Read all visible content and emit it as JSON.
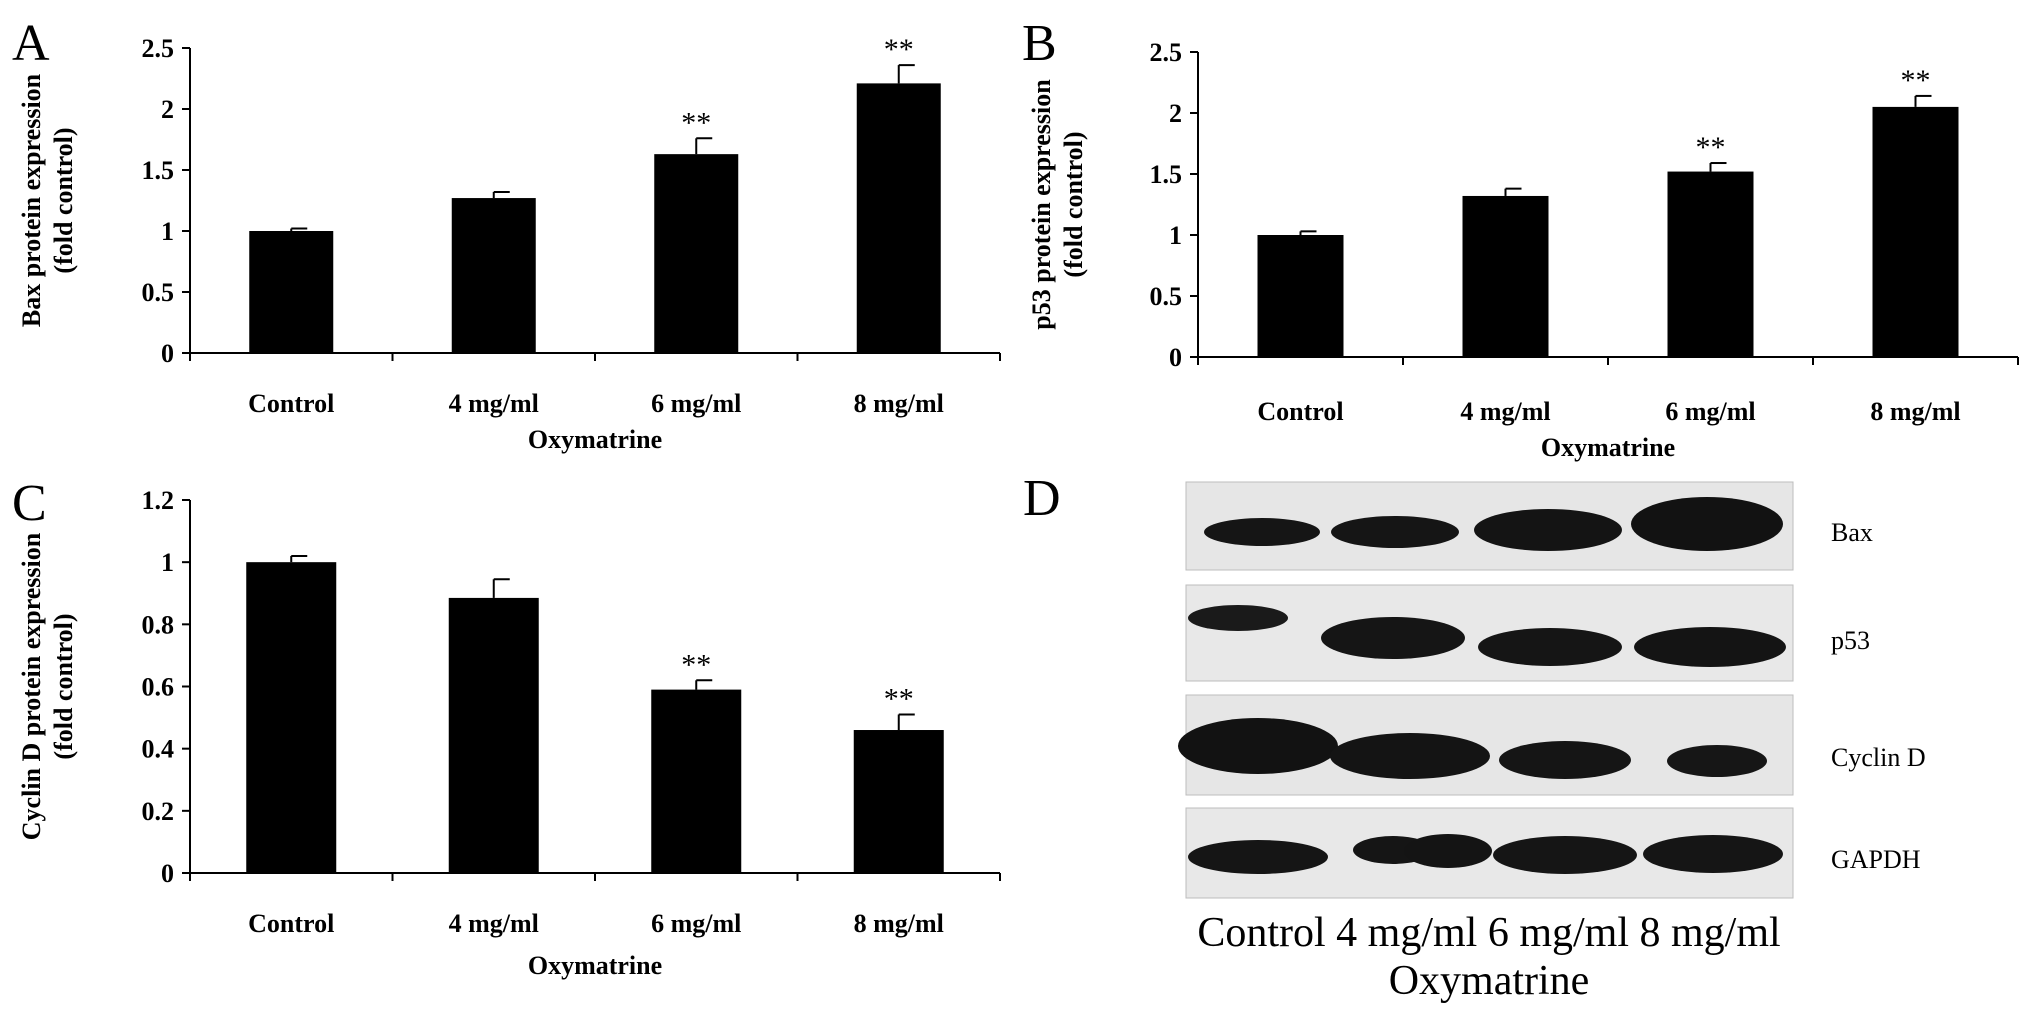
{
  "chart_data": [
    {
      "panel_label": "A",
      "type": "bar",
      "categories": [
        "Control",
        "4 mg/ml",
        "6 mg/ml",
        "8 mg/ml"
      ],
      "values": [
        1.0,
        1.27,
        1.63,
        2.21
      ],
      "errors": [
        0.02,
        0.05,
        0.13,
        0.15
      ],
      "significance": [
        "",
        "",
        "**",
        "**"
      ],
      "ylabel_line1": "Bax protein expression",
      "ylabel_line2": "(fold control)",
      "xlabel": "Oxymatrine",
      "ylim": [
        0,
        2.5
      ],
      "yticks": [
        0,
        0.5,
        1,
        1.5,
        2,
        2.5
      ],
      "ytick_labels": [
        "0",
        "0.5",
        "1",
        "1.5",
        "2",
        "2.5"
      ]
    },
    {
      "panel_label": "B",
      "type": "bar",
      "categories": [
        "Control",
        "4 mg/ml",
        "6 mg/ml",
        "8 mg/ml"
      ],
      "values": [
        1.0,
        1.32,
        1.52,
        2.05
      ],
      "errors": [
        0.03,
        0.06,
        0.07,
        0.09
      ],
      "significance": [
        "",
        "",
        "**",
        "**"
      ],
      "ylabel_line1": "p53 protein expression",
      "ylabel_line2": "(fold control)",
      "xlabel": "Oxymatrine",
      "ylim": [
        0,
        2.5
      ],
      "yticks": [
        0,
        0.5,
        1,
        1.5,
        2,
        2.5
      ],
      "ytick_labels": [
        "0",
        "0.5",
        "1",
        "1.5",
        "2",
        "2.5"
      ]
    },
    {
      "panel_label": "C",
      "type": "bar",
      "categories": [
        "Control",
        "4 mg/ml",
        "6 mg/ml",
        "8 mg/ml"
      ],
      "values": [
        1.0,
        0.885,
        0.59,
        0.46
      ],
      "errors": [
        0.02,
        0.06,
        0.03,
        0.05
      ],
      "significance": [
        "",
        "",
        "**",
        "**"
      ],
      "ylabel_line1": "Cyclin D protein expression",
      "ylabel_line2": "(fold control)",
      "xlabel": "Oxymatrine",
      "ylim": [
        0,
        1.2
      ],
      "yticks": [
        0,
        0.2,
        0.4,
        0.6,
        0.8,
        1.0,
        1.2
      ],
      "ytick_labels": [
        "0",
        "0.2",
        "0.4",
        "0.6",
        "0.8",
        "1",
        "1.2"
      ]
    }
  ],
  "blot": {
    "panel_label": "D",
    "lanes": [
      "Bax",
      "p53",
      "Cyclin D",
      "GAPDH"
    ],
    "categories_text": "Control 4 mg/ml 6 mg/ml 8 mg/ml",
    "xlabel": "Oxymatrine"
  },
  "colors": {
    "bar": "#000000",
    "blot_bg": "#e8e8e8",
    "band": "#141414"
  }
}
